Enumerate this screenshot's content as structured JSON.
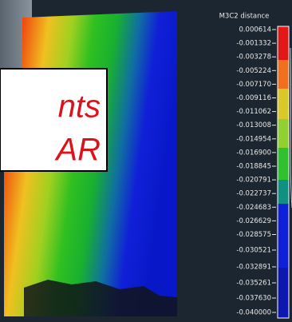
{
  "overlay": {
    "lines": [
      "nts",
      "AR"
    ]
  },
  "scale": {
    "title": "M3C2 distance",
    "labels": [
      "0.000614",
      "-0.001332",
      "-0.003278",
      "-0.005224",
      "-0.007170",
      "-0.009116",
      "-0.011062",
      "-0.013008",
      "-0.014954",
      "-0.016900",
      "-0.018845",
      "-0.020791",
      "-0.022737",
      "-0.024683",
      "-0.026629",
      "-0.028575",
      "-0.030521",
      "-0.032891",
      "-0.035261",
      "-0.037630",
      "-0.040000"
    ]
  }
}
